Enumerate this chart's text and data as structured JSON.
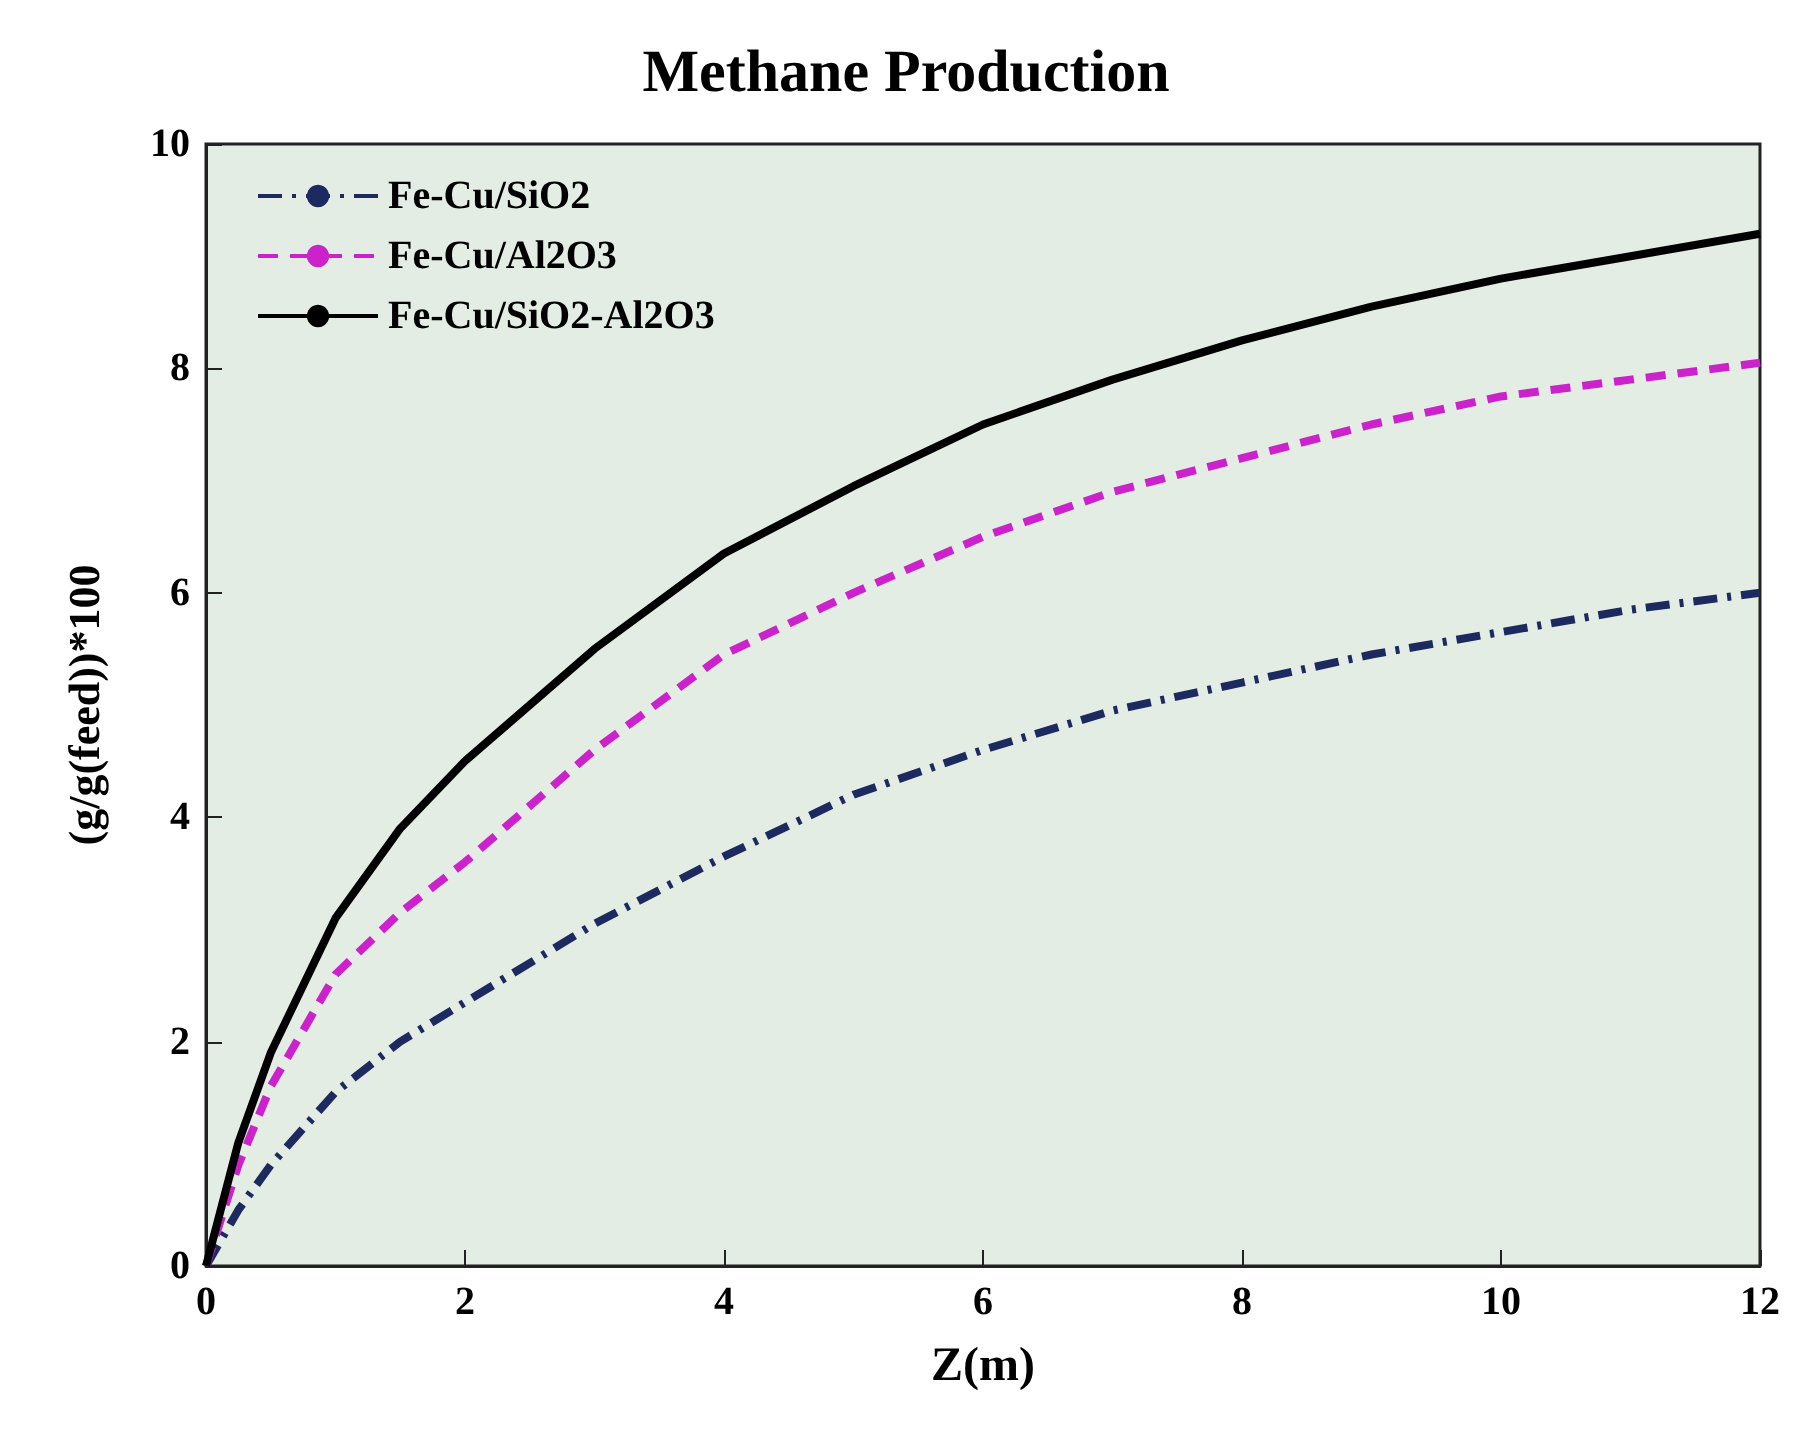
{
  "chart_data": {
    "type": "line",
    "title": "Methane Production",
    "xlabel": "Z(m)",
    "ylabel": "(g/g(feed))*100",
    "x": [
      0,
      0.25,
      0.5,
      1,
      1.5,
      2,
      3,
      4,
      5,
      6,
      7,
      8,
      9,
      10,
      11,
      12
    ],
    "series": [
      {
        "name": "Fe-Cu/SiO2",
        "color": "#1c2a60",
        "line_style": "dashdot",
        "values": [
          0,
          0.5,
          0.9,
          1.55,
          2.0,
          2.35,
          3.05,
          3.65,
          4.2,
          4.6,
          4.95,
          5.2,
          5.45,
          5.65,
          5.85,
          6.0
        ]
      },
      {
        "name": "Fe-Cu/Al2O3",
        "color": "#cc22cc",
        "line_style": "dashed",
        "values": [
          0,
          0.9,
          1.6,
          2.6,
          3.15,
          3.6,
          4.6,
          5.45,
          6.0,
          6.5,
          6.9,
          7.2,
          7.5,
          7.75,
          7.9,
          8.05
        ]
      },
      {
        "name": "Fe-Cu/SiO2-Al2O3",
        "color": "#000000",
        "line_style": "solid",
        "values": [
          0,
          1.1,
          1.9,
          3.1,
          3.9,
          4.5,
          5.5,
          6.35,
          6.95,
          7.5,
          7.9,
          8.25,
          8.55,
          8.8,
          9.0,
          9.2
        ]
      }
    ],
    "xlim": [
      0,
      12
    ],
    "xticks": [
      0,
      2,
      4,
      6,
      8,
      10,
      12
    ],
    "ylim": [
      0,
      10
    ],
    "yticks": [
      0,
      2,
      4,
      6,
      8,
      10
    ],
    "grid": false,
    "legend": "top left",
    "marker": "none"
  }
}
